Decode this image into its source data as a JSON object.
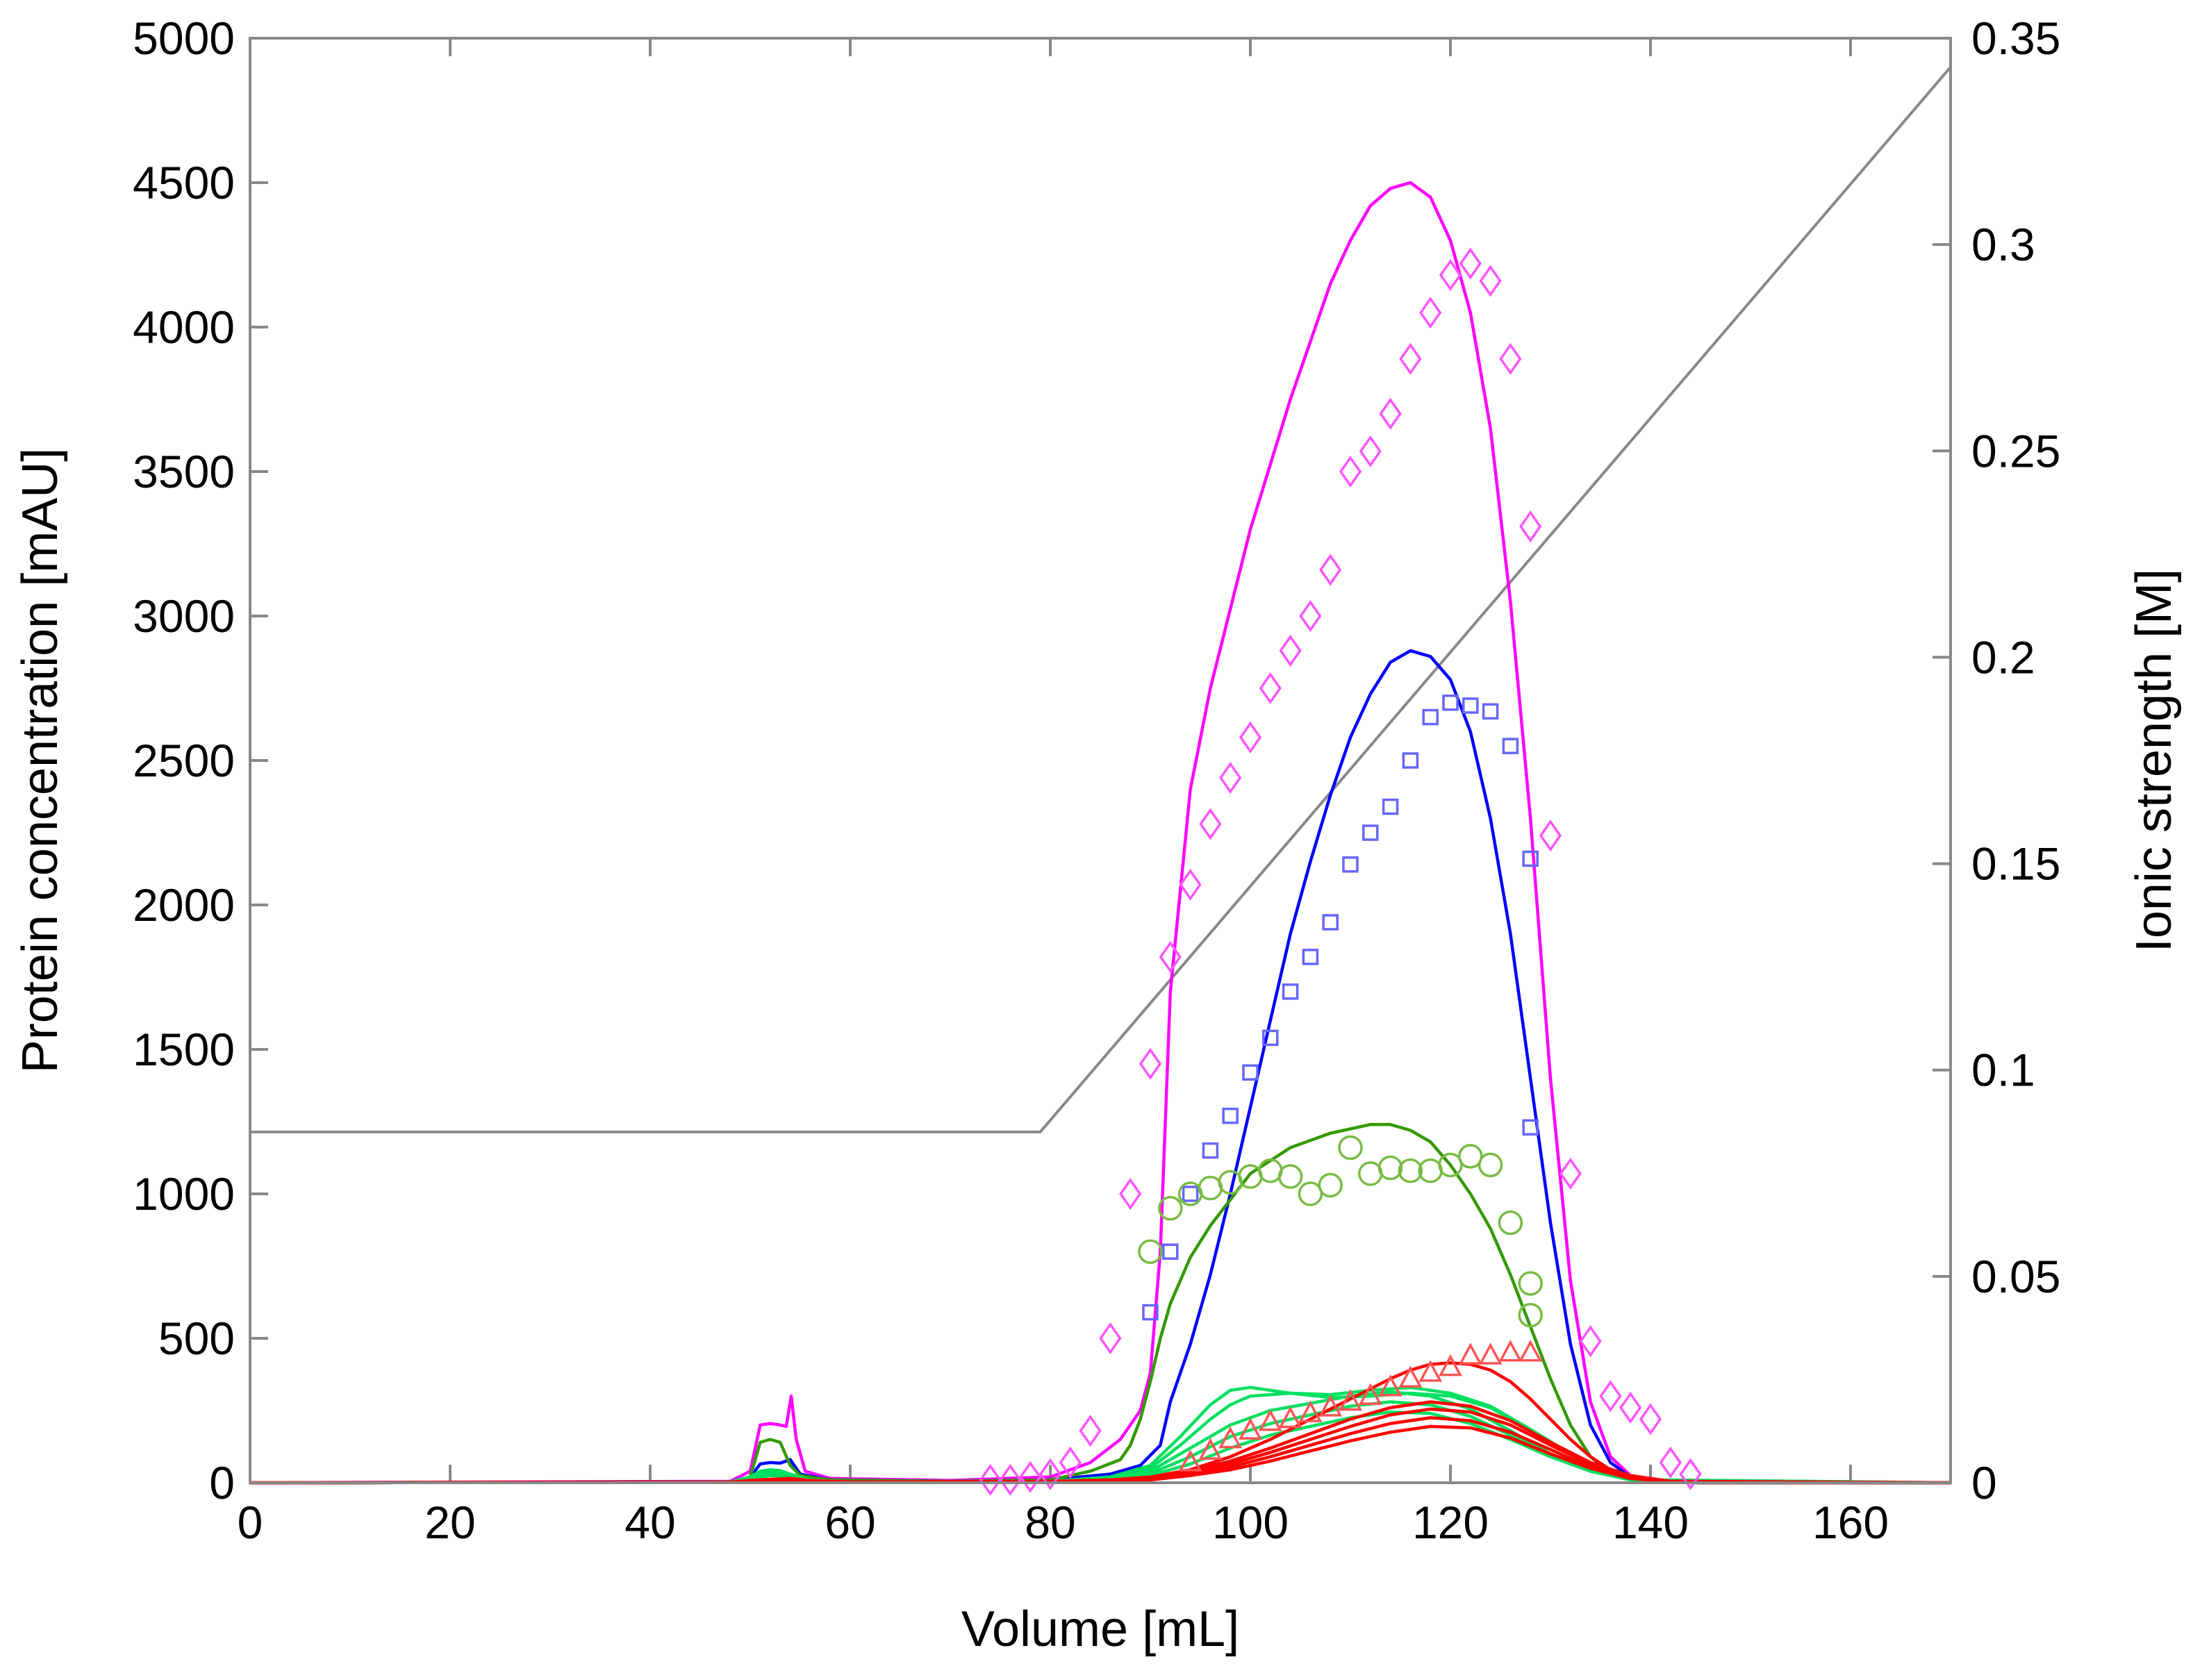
{
  "chart_data": {
    "type": "line",
    "title": "",
    "xlabel": "Volume [mL]",
    "ylabel": "Protein concentration [mAU]",
    "y2label": "Ionic strength [M]",
    "xlim": [
      0,
      170
    ],
    "ylim": [
      0,
      5000
    ],
    "y2lim": [
      0,
      0.35
    ],
    "x_ticks": [
      "0",
      "20",
      "40",
      "60",
      "80",
      "100",
      "120",
      "140",
      "160"
    ],
    "y_ticks": [
      "0",
      "500",
      "1000",
      "1500",
      "2000",
      "2500",
      "3000",
      "3500",
      "4000",
      "4500",
      "5000"
    ],
    "y2_ticks": [
      "0",
      "0.05",
      "0.1",
      "0.15",
      "0.2",
      "0.25",
      "0.3",
      "0.35"
    ],
    "grid": false,
    "legend": "none",
    "colors": {
      "magenta": "#ff00ff",
      "blue": "#0000ff",
      "olive_green": "#339900",
      "bright_green": "#00e060",
      "red": "#ff0000",
      "salt": "#888888",
      "magenta_markers": "#ff55ff",
      "blue_markers": "#6666ff",
      "green_markers": "#77bb44",
      "red_markers": "#ff5555"
    },
    "salt_gradient": {
      "axis": "y2",
      "x": [
        0,
        79,
        170
      ],
      "y": [
        0.085,
        0.085,
        0.343
      ]
    },
    "model_curves": [
      {
        "color": "magenta",
        "x": [
          0,
          48,
          50,
          51,
          52,
          53,
          53.6,
          54.1,
          54.6,
          55.5,
          58,
          70,
          80,
          84,
          87,
          89,
          90,
          91,
          92,
          94,
          96,
          100,
          104,
          108,
          110,
          112,
          114,
          116,
          118,
          120,
          122,
          124,
          126,
          128,
          130,
          132,
          134,
          136,
          138,
          140,
          145,
          170
        ],
        "y": [
          0,
          5,
          40,
          200,
          205,
          200,
          195,
          300,
          150,
          40,
          15,
          8,
          20,
          70,
          150,
          250,
          380,
          800,
          1700,
          2400,
          2750,
          3300,
          3750,
          4150,
          4300,
          4420,
          4480,
          4500,
          4450,
          4300,
          4050,
          3650,
          3050,
          2300,
          1400,
          700,
          280,
          90,
          25,
          5,
          0,
          0
        ]
      },
      {
        "color": "blue",
        "x": [
          0,
          48,
          50,
          51,
          52,
          53,
          54,
          55,
          58,
          70,
          80,
          86,
          89,
          91,
          92,
          94,
          96,
          98,
          100,
          102,
          104,
          106,
          108,
          110,
          112,
          114,
          116,
          118,
          120,
          122,
          124,
          126,
          128,
          130,
          132,
          134,
          136,
          138,
          140,
          145,
          170
        ],
        "y": [
          0,
          3,
          20,
          65,
          70,
          68,
          80,
          30,
          10,
          5,
          10,
          30,
          60,
          130,
          280,
          480,
          720,
          1000,
          1300,
          1600,
          1900,
          2150,
          2380,
          2580,
          2730,
          2840,
          2880,
          2860,
          2780,
          2600,
          2300,
          1900,
          1400,
          900,
          480,
          200,
          70,
          20,
          5,
          0,
          0
        ]
      },
      {
        "color": "olive_green",
        "x": [
          0,
          48,
          50,
          51,
          52,
          53,
          54,
          55,
          58,
          70,
          80,
          84,
          87,
          88,
          89,
          90,
          91,
          92,
          94,
          96,
          98,
          100,
          104,
          108,
          112,
          114,
          116,
          118,
          120,
          122,
          124,
          126,
          128,
          130,
          132,
          134,
          136,
          138,
          140,
          145,
          170
        ],
        "y": [
          0,
          3,
          20,
          140,
          150,
          140,
          60,
          25,
          10,
          5,
          10,
          40,
          80,
          130,
          220,
          350,
          500,
          620,
          780,
          890,
          980,
          1070,
          1160,
          1210,
          1240,
          1240,
          1220,
          1180,
          1100,
          1000,
          880,
          720,
          540,
          360,
          200,
          90,
          35,
          10,
          3,
          0,
          0
        ]
      },
      {
        "color": "bright_green",
        "x": [
          0,
          48,
          50,
          51,
          52,
          53,
          54,
          56,
          60,
          80,
          86,
          90,
          93,
          96,
          98,
          100,
          104,
          108,
          112,
          116,
          120,
          124,
          128,
          132,
          136,
          140,
          170
        ],
        "y": [
          0,
          2,
          20,
          40,
          45,
          42,
          30,
          10,
          3,
          5,
          20,
          60,
          160,
          270,
          320,
          330,
          310,
          295,
          300,
          310,
          300,
          260,
          180,
          100,
          40,
          10,
          0
        ]
      },
      {
        "color": "bright_green",
        "x": [
          0,
          48,
          50,
          51,
          52,
          53,
          54,
          56,
          60,
          80,
          86,
          90,
          93,
          96,
          98,
          100,
          104,
          108,
          112,
          116,
          120,
          124,
          128,
          132,
          136,
          140,
          170
        ],
        "y": [
          0,
          2,
          18,
          35,
          40,
          38,
          26,
          9,
          3,
          5,
          15,
          50,
          130,
          220,
          270,
          300,
          310,
          305,
          320,
          330,
          310,
          265,
          185,
          100,
          40,
          10,
          0
        ]
      },
      {
        "color": "bright_green",
        "x": [
          0,
          48,
          50,
          51,
          52,
          53,
          54,
          56,
          60,
          80,
          86,
          90,
          94,
          98,
          102,
          106,
          110,
          114,
          118,
          122,
          126,
          130,
          134,
          138,
          142,
          170
        ],
        "y": [
          0,
          2,
          16,
          30,
          35,
          33,
          22,
          8,
          2,
          4,
          12,
          40,
          120,
          200,
          250,
          275,
          300,
          315,
          300,
          255,
          180,
          100,
          40,
          10,
          2,
          0
        ]
      },
      {
        "color": "bright_green",
        "x": [
          0,
          48,
          50,
          51,
          52,
          53,
          54,
          56,
          60,
          80,
          86,
          90,
          94,
          98,
          102,
          106,
          110,
          114,
          118,
          122,
          126,
          130,
          134,
          138,
          142,
          170
        ],
        "y": [
          0,
          2,
          14,
          25,
          30,
          28,
          18,
          6,
          2,
          4,
          10,
          32,
          90,
          160,
          205,
          235,
          265,
          280,
          270,
          230,
          165,
          95,
          40,
          10,
          2,
          0
        ]
      },
      {
        "color": "bright_green",
        "x": [
          0,
          48,
          50,
          51,
          52,
          53,
          54,
          56,
          60,
          80,
          86,
          90,
          94,
          98,
          102,
          106,
          110,
          114,
          118,
          122,
          126,
          130,
          134,
          138,
          142,
          170
        ],
        "y": [
          0,
          2,
          12,
          20,
          25,
          23,
          15,
          5,
          2,
          3,
          8,
          25,
          65,
          120,
          165,
          195,
          225,
          245,
          240,
          205,
          150,
          90,
          40,
          10,
          2,
          0
        ]
      },
      {
        "color": "red",
        "x": [
          0,
          48,
          50,
          52,
          54,
          56,
          60,
          80,
          86,
          90,
          94,
          98,
          102,
          106,
          110,
          114,
          116,
          118,
          120,
          122,
          124,
          126,
          128,
          130,
          132,
          134,
          136,
          138,
          140,
          145,
          170
        ],
        "y": [
          0,
          2,
          8,
          12,
          15,
          8,
          3,
          5,
          10,
          20,
          45,
          90,
          150,
          220,
          290,
          360,
          390,
          410,
          415,
          410,
          390,
          350,
          290,
          220,
          150,
          90,
          45,
          20,
          8,
          0,
          0
        ]
      },
      {
        "color": "red",
        "x": [
          0,
          48,
          50,
          52,
          54,
          56,
          60,
          80,
          86,
          90,
          94,
          98,
          102,
          106,
          110,
          114,
          118,
          122,
          126,
          130,
          134,
          138,
          142,
          170
        ],
        "y": [
          0,
          2,
          6,
          10,
          12,
          6,
          2,
          4,
          8,
          18,
          40,
          75,
          120,
          170,
          220,
          260,
          280,
          265,
          215,
          140,
          70,
          25,
          5,
          0
        ]
      },
      {
        "color": "red",
        "x": [
          0,
          48,
          50,
          52,
          54,
          56,
          60,
          80,
          86,
          90,
          94,
          98,
          102,
          106,
          110,
          114,
          118,
          122,
          126,
          130,
          134,
          138,
          142,
          170
        ],
        "y": [
          0,
          2,
          5,
          8,
          10,
          5,
          2,
          3,
          7,
          15,
          35,
          65,
          105,
          150,
          195,
          235,
          255,
          245,
          200,
          130,
          65,
          22,
          5,
          0
        ]
      },
      {
        "color": "red",
        "x": [
          0,
          48,
          50,
          52,
          54,
          56,
          60,
          80,
          86,
          90,
          94,
          98,
          102,
          106,
          110,
          114,
          118,
          122,
          126,
          130,
          134,
          138,
          142,
          170
        ],
        "y": [
          0,
          2,
          4,
          6,
          8,
          4,
          2,
          3,
          6,
          12,
          30,
          55,
          90,
          130,
          170,
          205,
          225,
          215,
          175,
          115,
          55,
          18,
          4,
          0
        ]
      },
      {
        "color": "red",
        "x": [
          0,
          48,
          50,
          52,
          54,
          56,
          60,
          80,
          86,
          90,
          94,
          98,
          102,
          106,
          110,
          114,
          118,
          122,
          126,
          130,
          134,
          138,
          142,
          170
        ],
        "y": [
          0,
          2,
          3,
          5,
          6,
          3,
          1,
          2,
          5,
          10,
          25,
          45,
          75,
          110,
          145,
          175,
          195,
          190,
          155,
          100,
          50,
          15,
          3,
          0
        ]
      }
    ],
    "measured_data": [
      {
        "marker": "diamond",
        "color": "magenta_markers",
        "x": [
          74,
          76,
          78,
          80,
          82,
          84,
          86,
          88,
          90,
          92,
          94,
          96,
          98,
          100,
          102,
          104,
          106,
          108,
          110,
          112,
          114,
          116,
          118,
          120,
          122,
          124,
          126,
          128,
          130,
          132,
          134,
          136,
          138,
          140,
          142,
          144
        ],
        "y": [
          10,
          10,
          20,
          30,
          70,
          180,
          500,
          1000,
          1450,
          1820,
          2070,
          2280,
          2440,
          2580,
          2750,
          2880,
          3000,
          3160,
          3500,
          3570,
          3700,
          3890,
          4050,
          4180,
          4220,
          4160,
          3890,
          3310,
          2240,
          1070,
          490,
          300,
          260,
          220,
          70,
          30
        ]
      },
      {
        "marker": "square",
        "color": "blue_markers",
        "x": [
          90,
          92,
          94,
          96,
          98,
          100,
          102,
          104,
          106,
          108,
          110,
          112,
          114,
          116,
          118,
          120,
          122,
          124,
          126,
          128
        ],
        "y": [
          590,
          800,
          1000,
          1150,
          1270,
          1420,
          1540,
          1700,
          1820,
          1940,
          2140,
          2250,
          2340,
          2500,
          2650,
          2700,
          2690,
          2670,
          2550,
          2160
        ]
      },
      {
        "marker": "square",
        "color": "blue_markers",
        "x": [
          128
        ],
        "y": [
          1230
        ]
      },
      {
        "marker": "circle",
        "color": "green_markers",
        "x": [
          90,
          92,
          94,
          96,
          98,
          100,
          102,
          104,
          106,
          108,
          110,
          112,
          114,
          116,
          118,
          120,
          122,
          124,
          126,
          128
        ],
        "y": [
          800,
          950,
          1000,
          1020,
          1040,
          1060,
          1080,
          1060,
          1000,
          1030,
          1160,
          1070,
          1090,
          1080,
          1080,
          1100,
          1130,
          1100,
          900,
          690
        ]
      },
      {
        "marker": "circle",
        "color": "green_markers",
        "x": [
          128
        ],
        "y": [
          580
        ]
      },
      {
        "marker": "triangle",
        "color": "red_markers",
        "x": [
          94,
          96,
          98,
          100,
          102,
          104,
          106,
          108,
          110,
          112,
          114,
          116,
          118,
          120,
          122,
          124,
          126,
          128
        ],
        "y": [
          70,
          110,
          150,
          180,
          210,
          220,
          240,
          260,
          280,
          300,
          330,
          360,
          380,
          400,
          440,
          440,
          450,
          450
        ]
      }
    ]
  }
}
